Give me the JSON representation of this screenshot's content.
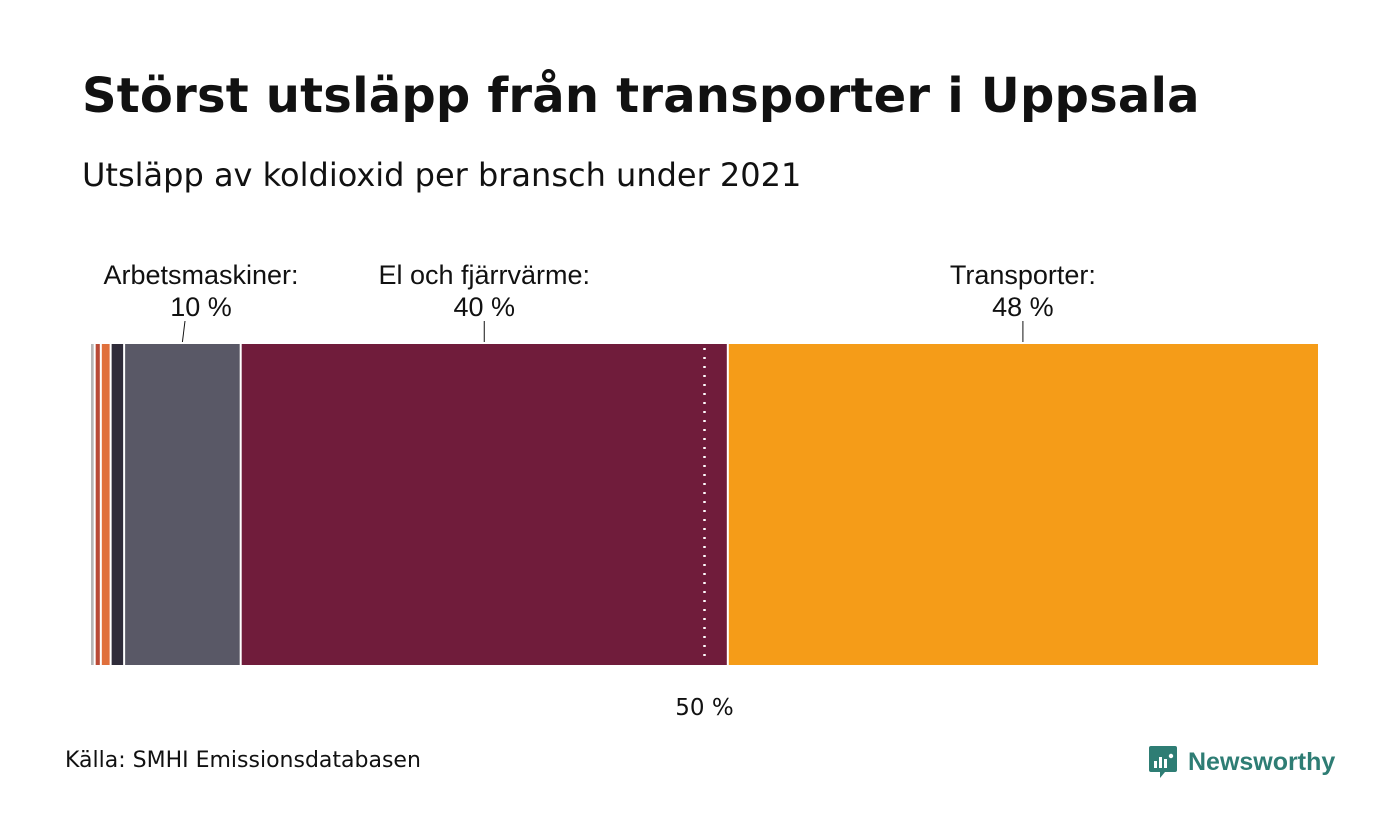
{
  "title": "Störst utsläpp från transporter i Uppsala",
  "subtitle": "Utsläpp av koldioxid per bransch under 2021",
  "source": "Källa: SMHI Emissionsdatabasen",
  "brand": {
    "name": "Newsworthy",
    "icon": "newsworthy-logo-icon",
    "color": "#2e7d74"
  },
  "chart_data": {
    "type": "bar",
    "orientation": "horizontal-stacked-100",
    "title": "Störst utsläpp från transporter i Uppsala",
    "subtitle": "Utsläpp av koldioxid per bransch under 2021",
    "xlim": [
      0,
      100
    ],
    "grid": false,
    "legend": "none",
    "segments": [
      {
        "value": 0.3,
        "color": "#b7b7b7"
      },
      {
        "value": 0.5,
        "color": "#b94a36"
      },
      {
        "value": 0.8,
        "color": "#e0703c"
      },
      {
        "value": 1.1,
        "color": "#2f2c3a"
      },
      {
        "value": 9.5,
        "color": "#595866",
        "label": "Arbetsmaskiner:",
        "percent": "10 %"
      },
      {
        "value": 39.7,
        "color": "#701c3b",
        "label": "El och fjärrvärme:",
        "percent": "40 %"
      },
      {
        "value": 48.1,
        "color": "#f59c18",
        "label": "Transporter:",
        "percent": "48 %"
      }
    ],
    "reference_line": {
      "value": 50,
      "label": "50 %",
      "style": "dotted",
      "color": "#ffffff"
    }
  }
}
